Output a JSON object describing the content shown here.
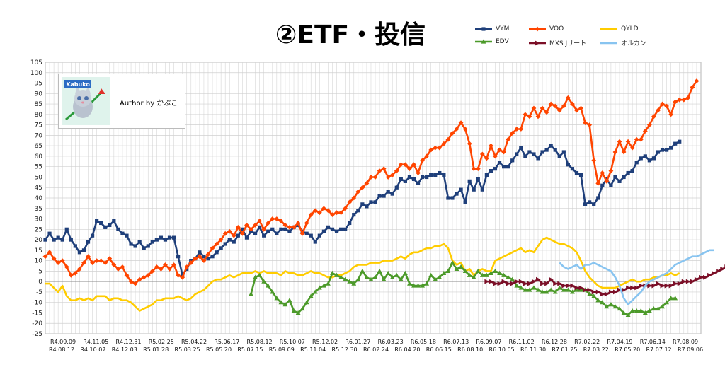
{
  "title": "②ETF・投信",
  "author_label": "Author by かぶこ",
  "logo_text": "Kabuko",
  "chart_data": {
    "type": "line",
    "title": "②ETF・投信",
    "xlabel": "",
    "ylabel": "",
    "ylim": [
      -25,
      105
    ],
    "ytick_step": 5,
    "grid": true,
    "legend_position": "top-right",
    "x_labels_row1": [
      "R4.09.09",
      "R4.11.05",
      "R4.12.31",
      "R5.02.25",
      "R5.04.22",
      "R5.06.17",
      "R5.08.12",
      "R5.10.07",
      "R5.12.02",
      "R6.01.27",
      "R6.03.23",
      "R6.05.18",
      "R6.07.13",
      "R6.09.07",
      "R6.11.02",
      "R6.12.28",
      "R7.02.22",
      "R7.04.19",
      "R7.06.14",
      "R7.08.09"
    ],
    "x_labels_row2": [
      "R4.08.12",
      "R4.10.07",
      "R4.12.03",
      "R5.01.28",
      "R5.03.25",
      "R5.05.20",
      "R5.07.15",
      "R5.09.09",
      "R5.11.04",
      "R5.12.30",
      "R6.02.24",
      "R6.04.20",
      "R6.06.15",
      "R6.08.10",
      "R6.10.05",
      "R6.11.30",
      "R7.01.25",
      "R7.03.22",
      "R7.05.20",
      "R7.07.12",
      "R7.09.06"
    ],
    "series": [
      {
        "name": "VYM",
        "color": "#1f3f7a",
        "marker": "square",
        "start": 0,
        "values": [
          20,
          23,
          20,
          21,
          20,
          25,
          20,
          17,
          14,
          15,
          19,
          22,
          29,
          28,
          26,
          27,
          29,
          25,
          23,
          22,
          18,
          17,
          19,
          16,
          17,
          19,
          20,
          21,
          20,
          21,
          21,
          12,
          3,
          6,
          10,
          11,
          14,
          12,
          11,
          12,
          14,
          16,
          18,
          20,
          19,
          22,
          25,
          21,
          24,
          23,
          26,
          22,
          24,
          25,
          23,
          25,
          25,
          24,
          26,
          27,
          24,
          23,
          22,
          19,
          22,
          24,
          26,
          25,
          24,
          25,
          25,
          28,
          32,
          34,
          37,
          36,
          38,
          38,
          41,
          41,
          43,
          42,
          45,
          49,
          48,
          50,
          49,
          47,
          50,
          50,
          51,
          51,
          52,
          51,
          40,
          40,
          42,
          44,
          38,
          48,
          44,
          49,
          44,
          51,
          53,
          54,
          57,
          55,
          55,
          58,
          61,
          64,
          60,
          62,
          61,
          59,
          62,
          63,
          65,
          63,
          60,
          62,
          56,
          54,
          52,
          51,
          37,
          38,
          37,
          40,
          46,
          49,
          46,
          50,
          48,
          50,
          52,
          53,
          57,
          59,
          60,
          58,
          59,
          62,
          63,
          63,
          64,
          66,
          67
        ]
      },
      {
        "name": "VOO",
        "color": "#ff4500",
        "marker": "diamond",
        "start": 0,
        "values": [
          12,
          14,
          11,
          9,
          10,
          7,
          3,
          4,
          6,
          9,
          12,
          9,
          10,
          10,
          9,
          11,
          8,
          6,
          7,
          3,
          0,
          -1,
          1,
          2,
          3,
          5,
          7,
          6,
          8,
          6,
          8,
          3,
          2,
          7,
          9,
          11,
          12,
          10,
          13,
          16,
          18,
          20,
          23,
          24,
          22,
          26,
          23,
          27,
          25,
          27,
          29,
          25,
          28,
          30,
          30,
          29,
          27,
          26,
          26,
          28,
          23,
          28,
          32,
          34,
          33,
          35,
          34,
          32,
          33,
          33,
          35,
          38,
          40,
          43,
          45,
          47,
          50,
          50,
          53,
          54,
          50,
          51,
          53,
          56,
          56,
          54,
          56,
          52,
          58,
          60,
          63,
          64,
          64,
          66,
          68,
          71,
          73,
          76,
          73,
          66,
          54,
          54,
          61,
          59,
          65,
          60,
          63,
          62,
          68,
          71,
          73,
          73,
          80,
          79,
          83,
          79,
          83,
          81,
          85,
          84,
          82,
          84,
          88,
          85,
          82,
          83,
          76,
          75,
          58,
          47,
          52,
          48,
          53,
          62,
          67,
          62,
          67,
          64,
          68,
          68,
          72,
          75,
          79,
          82,
          85,
          84,
          80,
          86,
          87,
          87,
          88,
          93,
          96
        ]
      },
      {
        "name": "QYLD",
        "color": "#ffcc00",
        "marker": "none",
        "start": 0,
        "values": [
          -1,
          -1,
          -3,
          -5,
          -2,
          -7,
          -9,
          -9,
          -8,
          -9,
          -8,
          -9,
          -7,
          -7,
          -7,
          -9,
          -8,
          -8,
          -9,
          -9,
          -10,
          -12,
          -14,
          -13,
          -12,
          -11,
          -9,
          -9,
          -8,
          -8,
          -8,
          -7,
          -8,
          -9,
          -8,
          -6,
          -5,
          -4,
          -2,
          0,
          1,
          1,
          2,
          3,
          2,
          3,
          4,
          4,
          4,
          5,
          4,
          5,
          4,
          4,
          4,
          3,
          5,
          4,
          4,
          3,
          3,
          4,
          5,
          4,
          4,
          3,
          2,
          2,
          3,
          3,
          4,
          5,
          7,
          8,
          8,
          8,
          9,
          9,
          9,
          10,
          10,
          10,
          11,
          12,
          11,
          13,
          14,
          14,
          15,
          16,
          16,
          17,
          17,
          18,
          16,
          10,
          8,
          9,
          5,
          6,
          3,
          5,
          6,
          5,
          5,
          10,
          11,
          12,
          13,
          14,
          15,
          16,
          14,
          15,
          14,
          17,
          20,
          21,
          20,
          19,
          18,
          18,
          17,
          16,
          14,
          10,
          5,
          2,
          0,
          -2,
          -3,
          -3,
          -3,
          -3,
          -2,
          -1,
          0,
          1,
          0,
          0,
          1,
          1,
          2,
          2,
          3,
          3,
          4,
          3,
          4
        ]
      },
      {
        "name": "EDV",
        "color": "#4c9a2a",
        "marker": "triangle",
        "start": 48,
        "values": [
          -6,
          2,
          3,
          0,
          -2,
          -5,
          -8,
          -10,
          -11,
          -9,
          -14,
          -15,
          -13,
          -10,
          -7,
          -5,
          -3,
          -2,
          -1,
          4,
          3,
          2,
          1,
          0,
          -1,
          1,
          5,
          2,
          1,
          2,
          5,
          1,
          4,
          2,
          3,
          1,
          4,
          -1,
          -2,
          -2,
          -2,
          -1,
          3,
          1,
          2,
          4,
          5,
          9,
          6,
          7,
          5,
          3,
          2,
          5,
          3,
          3,
          4,
          5,
          4,
          3,
          2,
          1,
          -2,
          -3,
          -4,
          -4,
          -3,
          -4,
          -5,
          -5,
          -4,
          -5,
          -3,
          -4,
          -4,
          -5,
          -4,
          -4,
          -4,
          -6,
          -7,
          -9,
          -10,
          -12,
          -11,
          -12,
          -13,
          -15,
          -16,
          -14,
          -14,
          -14,
          -15,
          -14,
          -13,
          -13,
          -12,
          -10,
          -8,
          -8
        ]
      },
      {
        "name": "MXS Jリート",
        "color": "#7b0f27",
        "marker": "arrow",
        "start": 103,
        "values": [
          0,
          0,
          -1,
          -1,
          0,
          -1,
          -1,
          0,
          0,
          -1,
          -1,
          0,
          1,
          -1,
          -1,
          1,
          -1,
          -1,
          -2,
          -2,
          -2,
          -3,
          -3,
          -4,
          -4,
          -5,
          -5,
          -6,
          -6,
          -5,
          -5,
          -4,
          -4,
          -3,
          -3,
          -3,
          -2,
          -2,
          -2,
          -2,
          -1,
          -2,
          -2,
          -2,
          -1,
          -1,
          0,
          0,
          0,
          1,
          2,
          2,
          3,
          4,
          5,
          6,
          7,
          8,
          9,
          9,
          10,
          10
        ]
      },
      {
        "name": "オルカン",
        "color": "#88c4f0",
        "marker": "none",
        "start": 120,
        "values": [
          9,
          7,
          6,
          7,
          8,
          6,
          8,
          8,
          9,
          8,
          7,
          6,
          5,
          2,
          -2,
          -8,
          -11,
          -9,
          -7,
          -5,
          -2,
          0,
          1,
          2,
          3,
          4,
          6,
          8,
          9,
          10,
          11,
          12,
          12,
          13,
          14,
          15,
          15
        ]
      }
    ]
  },
  "legend": [
    {
      "label": "VYM",
      "color": "#1f3f7a",
      "marker": "square"
    },
    {
      "label": "VOO",
      "color": "#ff4500",
      "marker": "diamond"
    },
    {
      "label": "QYLD",
      "color": "#ffcc00",
      "marker": "none"
    },
    {
      "label": "EDV",
      "color": "#4c9a2a",
      "marker": "triangle"
    },
    {
      "label": "MXS Jリート",
      "color": "#7b0f27",
      "marker": "arrow"
    },
    {
      "label": "オルカン",
      "color": "#88c4f0",
      "marker": "none"
    }
  ]
}
